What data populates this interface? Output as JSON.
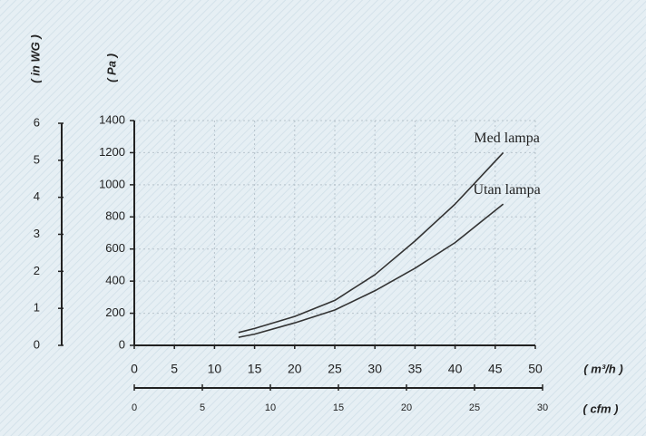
{
  "chart_data": {
    "type": "line",
    "y_label": "( Pa )",
    "y2_label": "( in WG )",
    "x_label": "( m³/h )",
    "x2_label": "( cfm )",
    "xlim": [
      0,
      50
    ],
    "xticks": [
      0,
      5,
      10,
      15,
      20,
      25,
      30,
      35,
      40,
      45,
      50
    ],
    "ylim": [
      0,
      1400
    ],
    "yticks": [
      0,
      200,
      400,
      600,
      800,
      1000,
      1200,
      1400
    ],
    "y2lim": [
      0,
      6
    ],
    "y2ticks": [
      0,
      1,
      2,
      3,
      4,
      5,
      6
    ],
    "x2lim": [
      0,
      30
    ],
    "x2ticks": [
      0,
      5,
      10,
      15,
      20,
      25,
      30
    ],
    "grid": true,
    "series": [
      {
        "name": "Med lampa",
        "color": "#333333",
        "x": [
          13,
          15,
          20,
          25,
          30,
          35,
          40,
          46
        ],
        "values": [
          80,
          105,
          180,
          280,
          440,
          650,
          880,
          1200
        ]
      },
      {
        "name": "Utan lampa",
        "color": "#333333",
        "x": [
          13,
          15,
          20,
          25,
          30,
          35,
          40,
          46
        ],
        "values": [
          50,
          70,
          140,
          220,
          340,
          480,
          640,
          880
        ]
      }
    ]
  }
}
